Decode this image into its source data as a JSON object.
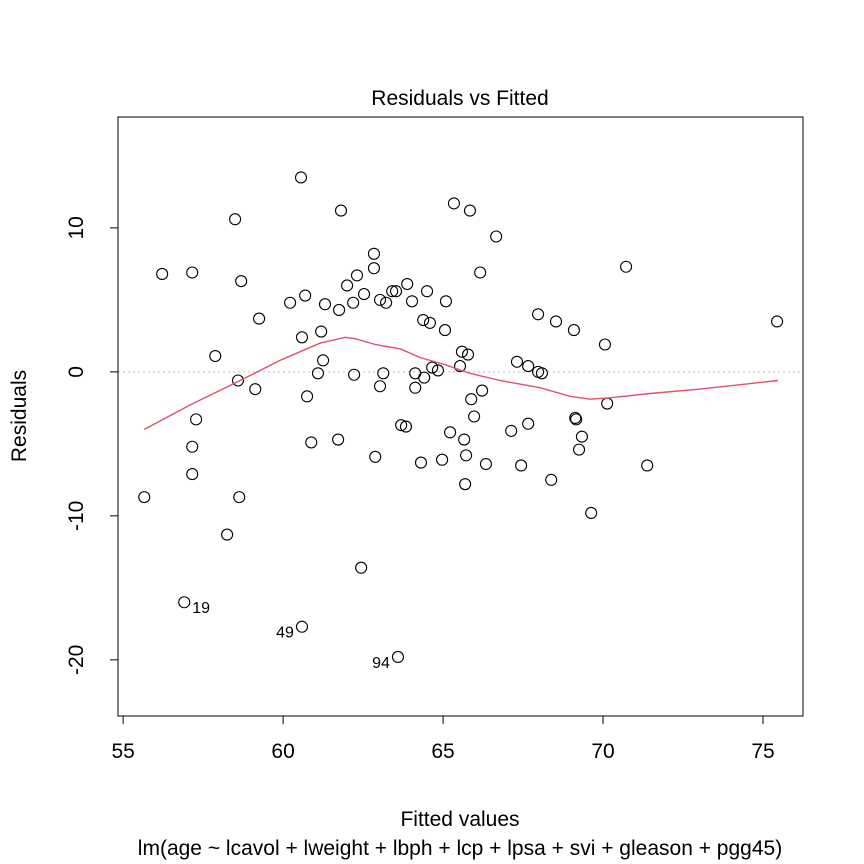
{
  "chart_data": {
    "type": "scatter",
    "title": "Residuals vs Fitted",
    "xlabel": "Fitted values",
    "subtitle": "lm(age ~ lcavol + lweight + lbph + lcp + lpsa + svi + gleason + pgg45)",
    "ylabel": "Residuals",
    "xlim": [
      54.84,
      76.25
    ],
    "ylim": [
      -23.9,
      17.7
    ],
    "xticks": [
      55,
      60,
      65,
      70,
      75
    ],
    "yticks": [
      -20,
      -10,
      0,
      10
    ],
    "grid": false,
    "reference_line": {
      "y": 0,
      "color": "#bebebe",
      "style": "dotted"
    },
    "points": [
      [
        60.56,
        13.5
      ],
      [
        61.81,
        11.2
      ],
      [
        58.5,
        10.6
      ],
      [
        65.34,
        11.7
      ],
      [
        65.84,
        11.2
      ],
      [
        66.66,
        9.4
      ],
      [
        62.84,
        8.2
      ],
      [
        62.84,
        7.2
      ],
      [
        56.22,
        6.8
      ],
      [
        57.16,
        6.9
      ],
      [
        58.69,
        6.3
      ],
      [
        62.31,
        6.7
      ],
      [
        66.16,
        6.9
      ],
      [
        70.72,
        7.3
      ],
      [
        60.69,
        5.3
      ],
      [
        62.0,
        6.0
      ],
      [
        62.53,
        5.4
      ],
      [
        63.88,
        6.1
      ],
      [
        60.22,
        4.8
      ],
      [
        61.31,
        4.7
      ],
      [
        62.19,
        4.8
      ],
      [
        63.03,
        5.0
      ],
      [
        63.22,
        4.8
      ],
      [
        63.41,
        5.6
      ],
      [
        63.53,
        5.6
      ],
      [
        64.5,
        5.6
      ],
      [
        64.03,
        4.9
      ],
      [
        65.09,
        4.9
      ],
      [
        61.75,
        4.3
      ],
      [
        59.25,
        3.7
      ],
      [
        64.38,
        3.6
      ],
      [
        64.59,
        3.4
      ],
      [
        67.97,
        4.0
      ],
      [
        68.53,
        3.5
      ],
      [
        69.09,
        2.9
      ],
      [
        65.06,
        2.9
      ],
      [
        61.19,
        2.8
      ],
      [
        75.44,
        3.5
      ],
      [
        60.59,
        2.4
      ],
      [
        70.06,
        1.9
      ],
      [
        57.88,
        1.1
      ],
      [
        65.59,
        1.4
      ],
      [
        65.78,
        1.2
      ],
      [
        61.25,
        0.8
      ],
      [
        67.31,
        0.7
      ],
      [
        67.66,
        0.4
      ],
      [
        65.53,
        0.4
      ],
      [
        64.66,
        0.3
      ],
      [
        64.84,
        0.1
      ],
      [
        61.09,
        -0.1
      ],
      [
        62.22,
        -0.2
      ],
      [
        63.13,
        -0.1
      ],
      [
        64.13,
        -0.1
      ],
      [
        67.97,
        0.0
      ],
      [
        68.09,
        -0.1
      ],
      [
        58.59,
        -0.6
      ],
      [
        64.41,
        -0.4
      ],
      [
        59.13,
        -1.2
      ],
      [
        63.03,
        -1.0
      ],
      [
        64.13,
        -1.1
      ],
      [
        66.22,
        -1.3
      ],
      [
        60.75,
        -1.7
      ],
      [
        65.88,
        -1.9
      ],
      [
        70.13,
        -2.2
      ],
      [
        65.97,
        -3.1
      ],
      [
        57.28,
        -3.3
      ],
      [
        69.13,
        -3.2
      ],
      [
        69.16,
        -3.3
      ],
      [
        63.69,
        -3.7
      ],
      [
        63.84,
        -3.8
      ],
      [
        67.66,
        -3.6
      ],
      [
        67.13,
        -4.1
      ],
      [
        65.22,
        -4.2
      ],
      [
        69.34,
        -4.5
      ],
      [
        65.66,
        -4.7
      ],
      [
        61.72,
        -4.7
      ],
      [
        60.88,
        -4.9
      ],
      [
        57.16,
        -5.2
      ],
      [
        69.25,
        -5.4
      ],
      [
        65.72,
        -5.8
      ],
      [
        62.88,
        -5.9
      ],
      [
        64.97,
        -6.1
      ],
      [
        64.31,
        -6.3
      ],
      [
        66.34,
        -6.4
      ],
      [
        67.44,
        -6.5
      ],
      [
        71.38,
        -6.5
      ],
      [
        57.16,
        -7.1
      ],
      [
        68.38,
        -7.5
      ],
      [
        65.69,
        -7.8
      ],
      [
        55.66,
        -8.7
      ],
      [
        58.63,
        -8.7
      ],
      [
        69.63,
        -9.8
      ],
      [
        58.25,
        -11.3
      ],
      [
        62.44,
        -13.6
      ],
      [
        56.91,
        -16.0
      ],
      [
        60.59,
        -17.7
      ],
      [
        63.59,
        -19.8
      ]
    ],
    "labeled_points": [
      {
        "label": "19",
        "x": 56.91,
        "y": -16.0,
        "side": "right"
      },
      {
        "label": "49",
        "x": 60.59,
        "y": -17.7,
        "side": "left"
      },
      {
        "label": "94",
        "x": 63.59,
        "y": -19.8,
        "side": "left"
      }
    ],
    "smooth_line": {
      "color": "#DF536B",
      "x": [
        55.66,
        57.09,
        58.66,
        59.91,
        61.16,
        61.94,
        62.25,
        62.88,
        63.66,
        64.28,
        65.06,
        65.84,
        66.78,
        68.03,
        68.97,
        69.59,
        70.22,
        71.47,
        73.03,
        75.47
      ],
      "y": [
        -4.0,
        -2.3,
        -0.6,
        0.8,
        2.0,
        2.4,
        2.3,
        1.9,
        1.6,
        1.0,
        0.5,
        -0.1,
        -0.6,
        -1.1,
        -1.7,
        -1.9,
        -1.8,
        -1.5,
        -1.2,
        -0.6
      ]
    }
  }
}
